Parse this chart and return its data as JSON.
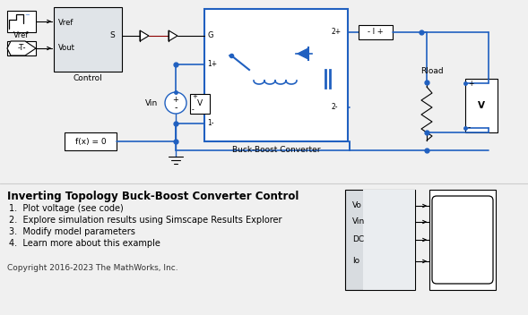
{
  "title": "Inverting Topology Buck-Boost Converter Control",
  "items": [
    "1.  Plot voltage (see code)",
    "2.  Explore simulation results using Simscape Results Explorer",
    "3.  Modify model parameters",
    "4.  Learn more about this example"
  ],
  "copyright": "Copyright 2016-2023 The MathWorks, Inc.",
  "bg_color": "#f0f0f0",
  "blue": "#2060c0",
  "black": "#000000",
  "dark_red": "#8b0000",
  "lgray": "#e0e4e8",
  "white": "#ffffff"
}
